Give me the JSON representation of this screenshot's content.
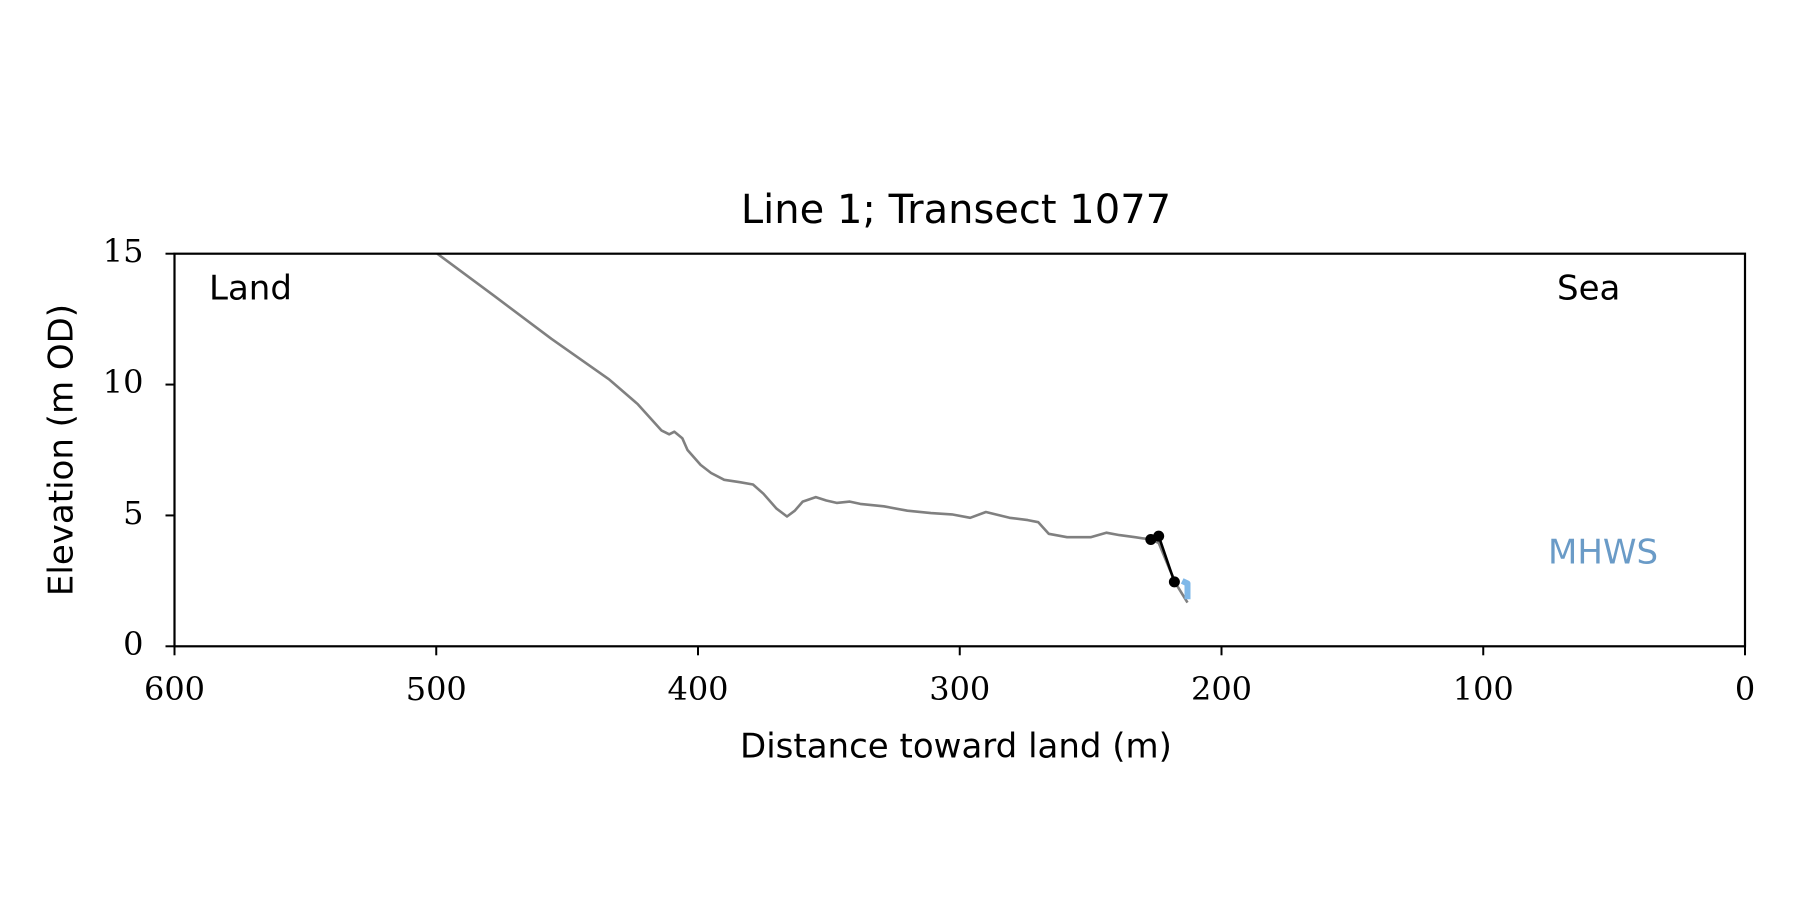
{
  "chart_data": {
    "type": "line",
    "title": "Line 1; Transect 1077",
    "xlabel": "Distance toward land (m)",
    "ylabel": "Elevation (m OD)",
    "xlim": [
      600,
      0
    ],
    "ylim": [
      0,
      15
    ],
    "xticks": [
      600,
      500,
      400,
      300,
      200,
      100,
      0
    ],
    "yticks": [
      0,
      5,
      10,
      15
    ],
    "annotations": [
      {
        "text": "Land",
        "color": "#000000"
      },
      {
        "text": "Sea",
        "color": "#000000"
      },
      {
        "text": "MHWS",
        "color": "#6a9bc7"
      }
    ],
    "series": [
      {
        "color": "#808080",
        "markers": false,
        "x": [
          499.6,
          478,
          456,
          434,
          423,
          414,
          411,
          409,
          406,
          404,
          399,
          395,
          390,
          384,
          379,
          375,
          370,
          366,
          363,
          360,
          355,
          351,
          347,
          342,
          338,
          329,
          320,
          311,
          303,
          296,
          290,
          281,
          274,
          270,
          266,
          259,
          250,
          244,
          239,
          233,
          227,
          224,
          220,
          217,
          213
        ],
        "y": [
          15.0,
          13.4,
          11.75,
          10.2,
          9.25,
          8.25,
          8.1,
          8.2,
          7.95,
          7.5,
          6.93,
          6.62,
          6.36,
          6.27,
          6.18,
          5.83,
          5.26,
          4.96,
          5.18,
          5.53,
          5.7,
          5.57,
          5.48,
          5.53,
          5.44,
          5.35,
          5.18,
          5.09,
          5.04,
          4.91,
          5.13,
          4.91,
          4.82,
          4.74,
          4.3,
          4.17,
          4.17,
          4.34,
          4.25,
          4.17,
          4.08,
          3.95,
          2.98,
          2.32,
          1.67
        ]
      },
      {
        "color": "#000000",
        "markers": true,
        "x": [
          227,
          224,
          218
        ],
        "y": [
          4.08,
          4.21,
          2.46
        ]
      },
      {
        "color": "#7fb8e8",
        "markers": false,
        "x": [
          215,
          213,
          213
        ],
        "y": [
          2.5,
          2.4,
          1.8
        ]
      }
    ]
  }
}
